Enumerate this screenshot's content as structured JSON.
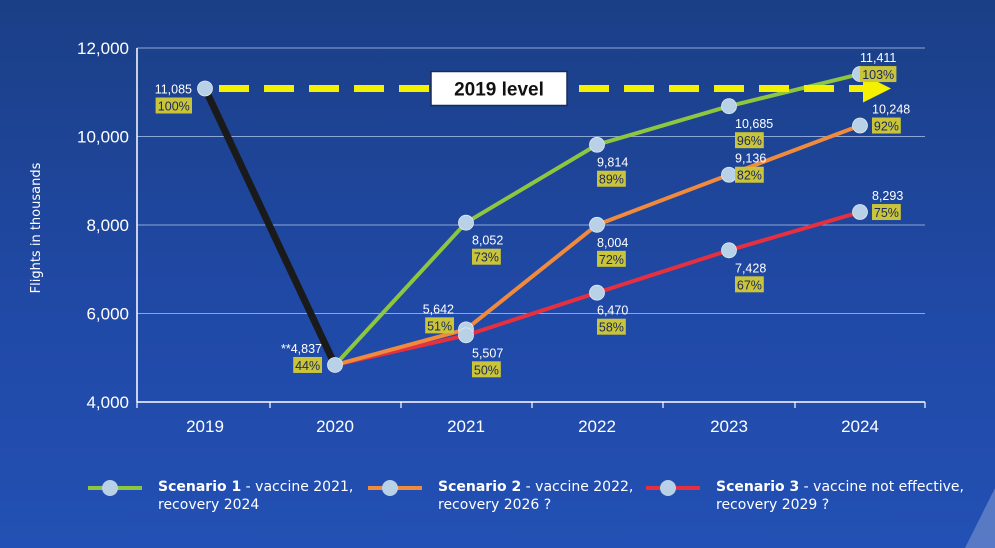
{
  "chart_data": {
    "type": "line",
    "ylabel": "Flights in thousands",
    "ylim": [
      4000,
      12000
    ],
    "yticks": [
      "4,000",
      "6,000",
      "8,000",
      "10,000",
      "12,000"
    ],
    "categories": [
      "2019",
      "2020",
      "2021",
      "2022",
      "2023",
      "2024"
    ],
    "reference_label": "2019 level",
    "historical": {
      "color": "#1a1a1a",
      "points": [
        {
          "x": "2019",
          "y": 11085,
          "label": "11,085",
          "pct": "100%"
        },
        {
          "x": "2020",
          "y": 4837,
          "label": "**4,837",
          "pct": "44%"
        }
      ]
    },
    "series": [
      {
        "name": "Scenario 1",
        "desc_line1": " - vaccine 2021,",
        "desc_line2": "recovery 2024",
        "color": "#8dc63f",
        "points": [
          {
            "x": "2020",
            "y": 4837
          },
          {
            "x": "2021",
            "y": 8052,
            "label": "8,052",
            "pct": "73%"
          },
          {
            "x": "2022",
            "y": 9814,
            "label": "9,814",
            "pct": "89%"
          },
          {
            "x": "2023",
            "y": 10685,
            "label": "10,685",
            "pct": "96%"
          },
          {
            "x": "2024",
            "y": 11411,
            "label": "11,411",
            "pct": "103%"
          }
        ]
      },
      {
        "name": "Scenario 2",
        "desc_line1": " - vaccine 2022,",
        "desc_line2": "recovery 2026 ?",
        "color": "#f08a3c",
        "points": [
          {
            "x": "2020",
            "y": 4837
          },
          {
            "x": "2021",
            "y": 5642,
            "label": "5,642",
            "pct": "51%"
          },
          {
            "x": "2022",
            "y": 8004,
            "label": "8,004",
            "pct": "72%"
          },
          {
            "x": "2023",
            "y": 9136,
            "label": "9,136",
            "pct": "82%"
          },
          {
            "x": "2024",
            "y": 10248,
            "label": "10,248",
            "pct": "92%"
          }
        ]
      },
      {
        "name": "Scenario 3",
        "desc_line1": " - vaccine not effective,",
        "desc_line2": "recovery 2029 ?",
        "color": "#e53040",
        "points": [
          {
            "x": "2020",
            "y": 4837
          },
          {
            "x": "2021",
            "y": 5507,
            "label": "5,507",
            "pct": "50%"
          },
          {
            "x": "2022",
            "y": 6470,
            "label": "6,470",
            "pct": "58%"
          },
          {
            "x": "2023",
            "y": 7428,
            "label": "7,428",
            "pct": "67%"
          },
          {
            "x": "2024",
            "y": 8293,
            "label": "8,293",
            "pct": "75%"
          }
        ]
      }
    ],
    "colors": {
      "marker": "#b9d1e6",
      "reference_arrow": "#f5f000",
      "pct_badge": "#c9c43a",
      "grid": "#8ea6d6"
    }
  }
}
